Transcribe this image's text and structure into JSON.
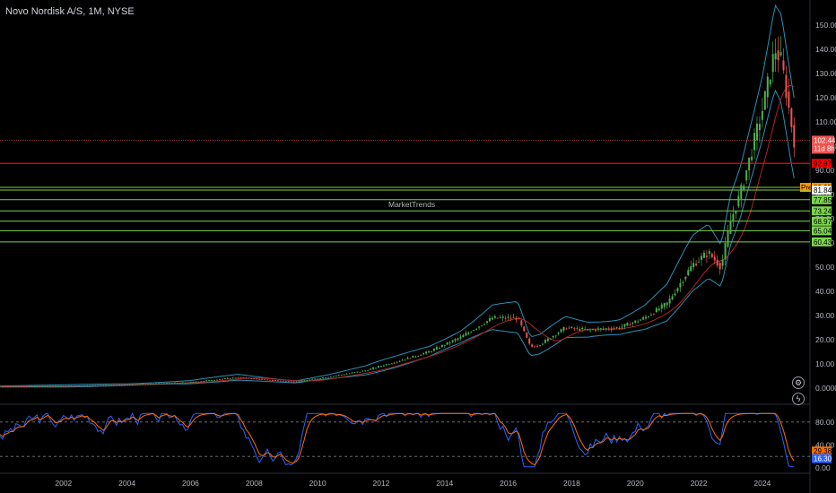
{
  "header": {
    "title": "Novo Nordisk A/S, 1M, NYSE"
  },
  "watermark": "MarketTrends",
  "colors": {
    "up": "#26a69a",
    "down": "#ef5350",
    "upBright": "#4caf50",
    "band": "#2b90b8",
    "ma": "#b22222",
    "green": "#7cd44c",
    "red": "#ff0000",
    "rsiBlue": "#2962ff",
    "rsiOrange": "#ff6d00"
  },
  "chart_data": {
    "type": "candlestick",
    "title": "Novo Nordisk A/S, 1M, NYSE",
    "x_range": [
      2000.0,
      2025.5
    ],
    "x_ticks": [
      "2002",
      "2004",
      "2006",
      "2008",
      "2010",
      "2012",
      "2014",
      "2016",
      "2018",
      "2020",
      "2022",
      "2024"
    ],
    "y_scale": "log",
    "y_ticks": [
      "150.00",
      "140.00",
      "130.00",
      "120.00",
      "110.00",
      "100.00",
      "90.00",
      "80.00",
      "70.00",
      "60.00",
      "50.00",
      "40.00",
      "30.00",
      "20.00",
      "10.00",
      "0.0000"
    ],
    "price_anchors": [
      [
        2000.0,
        1.6
      ],
      [
        2002.0,
        1.8
      ],
      [
        2004.0,
        2.3
      ],
      [
        2006.0,
        3.2
      ],
      [
        2007.5,
        5.0
      ],
      [
        2008.5,
        4.0
      ],
      [
        2009.3,
        3.3
      ],
      [
        2010.5,
        5.5
      ],
      [
        2011.5,
        7.5
      ],
      [
        2012.5,
        11.0
      ],
      [
        2013.5,
        15.0
      ],
      [
        2014.5,
        21.0
      ],
      [
        2015.5,
        29.0
      ],
      [
        2016.3,
        29.0
      ],
      [
        2016.7,
        17.0
      ],
      [
        2017.0,
        18.0
      ],
      [
        2017.8,
        25.0
      ],
      [
        2018.5,
        24.0
      ],
      [
        2019.5,
        25.0
      ],
      [
        2020.3,
        29.0
      ],
      [
        2021.0,
        35.0
      ],
      [
        2021.8,
        51.0
      ],
      [
        2022.3,
        56.0
      ],
      [
        2022.7,
        50.0
      ],
      [
        2023.0,
        69.0
      ],
      [
        2023.3,
        80.0
      ],
      [
        2023.6,
        95.0
      ],
      [
        2024.0,
        115.0
      ],
      [
        2024.4,
        140.0
      ],
      [
        2024.6,
        135.0
      ],
      [
        2024.9,
        110.0
      ],
      [
        2025.0,
        102.44
      ]
    ],
    "last_price": "102.44",
    "countdown": "11d 8h",
    "levels": [
      {
        "value": 92.87,
        "label": "92.87",
        "color": "red",
        "label_color": "red"
      },
      {
        "value": 82.95,
        "label": "82.95",
        "color": "green",
        "tag": "Pre",
        "label_color": "orange"
      },
      {
        "value": 81.84,
        "label": "81.84",
        "color": "green",
        "label_color": "white"
      },
      {
        "value": 77.85,
        "label": "77.85",
        "color": "green",
        "label_color": "green"
      },
      {
        "value": 73.24,
        "label": "73.24",
        "color": "green",
        "label_color": "green"
      },
      {
        "value": 68.97,
        "label": "68.97",
        "color": "green",
        "label_color": "green"
      },
      {
        "value": 65.04,
        "label": "65.04",
        "color": "green",
        "label_color": "green"
      },
      {
        "value": 60.43,
        "label": "60.43",
        "color": "green",
        "label_color": "green"
      }
    ],
    "oscillator": {
      "y_ticks": [
        "80.00",
        "40.00",
        "0.00"
      ],
      "k_label": "29.38",
      "d_label": "16.30",
      "k_value": 29.38,
      "d_value": 16.3,
      "levels": [
        80,
        20
      ]
    }
  }
}
